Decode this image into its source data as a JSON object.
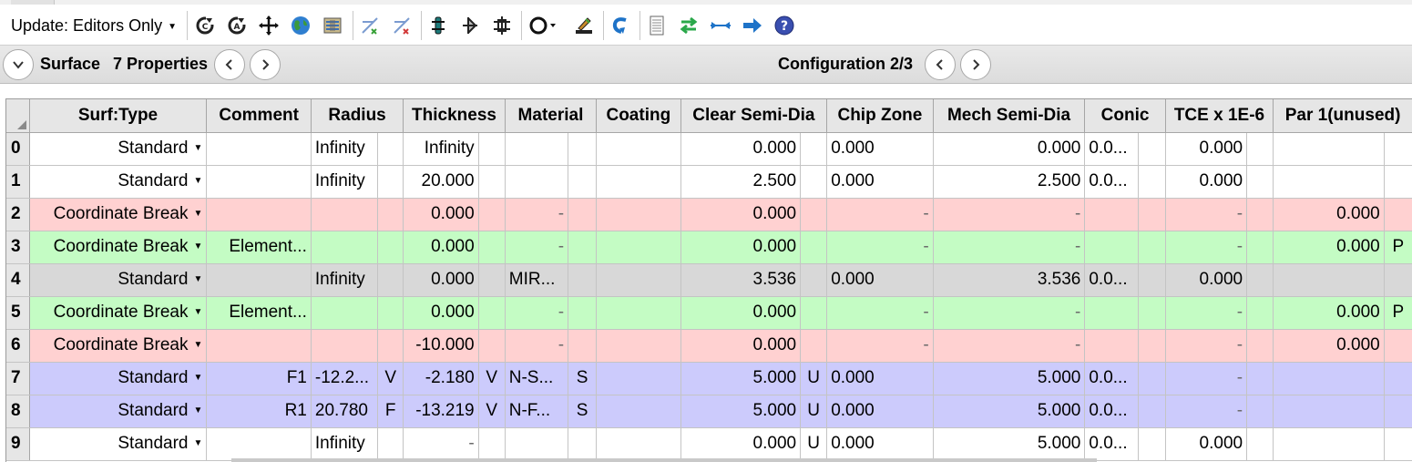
{
  "toolbar": {
    "update_label": "Update: Editors Only",
    "icons": [
      "refresh-icon",
      "refresh-all-icon",
      "crosshair-icon",
      "globe-icon",
      "wavefront-map-icon",
      "make-solves-variable-icon",
      "remove-variables-icon",
      "optimize-icon",
      "merit-function-icon",
      "tolerance-icon",
      "aperture-icon",
      "edit-icon",
      "undo-icon",
      "lens-data-icon",
      "swap-icon",
      "insert-icon",
      "forward-icon",
      "help-icon"
    ]
  },
  "surface_bar": {
    "surface_label": "Surface",
    "properties_label": "7 Properties",
    "config_label": "Configuration 2/3"
  },
  "grid": {
    "columns": [
      "Surf:Type",
      "Comment",
      "Radius",
      "Thickness",
      "Material",
      "Coating",
      "Clear Semi-Dia",
      "Chip Zone",
      "Mech Semi-Dia",
      "Conic",
      "TCE x 1E-6",
      "Par 1(unused)"
    ],
    "rows": [
      {
        "num": "0",
        "style": "white",
        "type": "Standard",
        "comment": "",
        "radius": "Infinity",
        "radius_solve": "",
        "thickness": "Infinity",
        "thickness_solve": "",
        "material": "",
        "material_solve": "",
        "coating": "",
        "clear": "0.000",
        "clear_solve": "",
        "chip": "0.000",
        "mech": "0.000",
        "conic": "0.0...",
        "tce": "0.000",
        "par1": "",
        "par1_solve": ""
      },
      {
        "num": "1",
        "style": "white",
        "type": "Standard",
        "comment": "",
        "radius": "Infinity",
        "radius_solve": "",
        "thickness": "20.000",
        "thickness_solve": "",
        "material": "",
        "material_solve": "",
        "coating": "",
        "clear": "2.500",
        "clear_solve": "",
        "chip": "0.000",
        "mech": "2.500",
        "conic": "0.0...",
        "tce": "0.000",
        "par1": "",
        "par1_solve": ""
      },
      {
        "num": "2",
        "style": "pink",
        "type": "Coordinate Break",
        "comment": "",
        "radius": "",
        "radius_solve": "",
        "thickness": "0.000",
        "thickness_solve": "",
        "material": "-",
        "material_solve": "",
        "coating": "",
        "clear": "0.000",
        "clear_solve": "",
        "chip": "-",
        "mech": "-",
        "conic": "",
        "tce": "-",
        "par1": "0.000",
        "par1_solve": ""
      },
      {
        "num": "3",
        "style": "green",
        "type": "Coordinate Break",
        "comment": "Element...",
        "radius": "",
        "radius_solve": "",
        "thickness": "0.000",
        "thickness_solve": "",
        "material": "-",
        "material_solve": "",
        "coating": "",
        "clear": "0.000",
        "clear_solve": "",
        "chip": "-",
        "mech": "-",
        "conic": "",
        "tce": "-",
        "par1": "0.000",
        "par1_solve": "P"
      },
      {
        "num": "4",
        "style": "gray",
        "type": "Standard",
        "comment": "",
        "radius": "Infinity",
        "radius_solve": "",
        "thickness": "0.000",
        "thickness_solve": "",
        "material": "MIR...",
        "material_solve": "",
        "coating": "",
        "clear": "3.536",
        "clear_solve": "",
        "chip": "0.000",
        "mech": "3.536",
        "conic": "0.0...",
        "tce": "0.000",
        "par1": "",
        "par1_solve": ""
      },
      {
        "num": "5",
        "style": "green",
        "type": "Coordinate Break",
        "comment": "Element...",
        "radius": "",
        "radius_solve": "",
        "thickness": "0.000",
        "thickness_solve": "",
        "material": "-",
        "material_solve": "",
        "coating": "",
        "clear": "0.000",
        "clear_solve": "",
        "chip": "-",
        "mech": "-",
        "conic": "",
        "tce": "-",
        "par1": "0.000",
        "par1_solve": "P"
      },
      {
        "num": "6",
        "style": "pink",
        "type": "Coordinate Break",
        "comment": "",
        "radius": "",
        "radius_solve": "",
        "thickness": "-10.000",
        "thickness_solve": "",
        "material": "-",
        "material_solve": "",
        "coating": "",
        "clear": "0.000",
        "clear_solve": "",
        "chip": "-",
        "mech": "-",
        "conic": "",
        "tce": "-",
        "par1": "0.000",
        "par1_solve": ""
      },
      {
        "num": "7",
        "style": "blue",
        "type": "Standard",
        "comment": "F1",
        "radius": "-12.2...",
        "radius_solve": "V",
        "thickness": "-2.180",
        "thickness_solve": "V",
        "material": "N-S...",
        "material_solve": "S",
        "coating": "",
        "clear": "5.000",
        "clear_solve": "U",
        "chip": "0.000",
        "mech": "5.000",
        "conic": "0.0...",
        "tce": "-",
        "par1": "",
        "par1_solve": ""
      },
      {
        "num": "8",
        "style": "blue",
        "type": "Standard",
        "comment": "R1",
        "radius": "20.780",
        "radius_solve": "F",
        "thickness": "-13.219",
        "thickness_solve": "V",
        "material": "N-F...",
        "material_solve": "S",
        "coating": "",
        "clear": "5.000",
        "clear_solve": "U",
        "chip": "0.000",
        "mech": "5.000",
        "conic": "0.0...",
        "tce": "-",
        "par1": "",
        "par1_solve": ""
      },
      {
        "num": "9",
        "style": "white",
        "type": "Standard",
        "comment": "",
        "radius": "Infinity",
        "radius_solve": "",
        "thickness": "-",
        "thickness_solve": "",
        "material": "",
        "material_solve": "",
        "coating": "",
        "clear": "0.000",
        "clear_solve": "U",
        "chip": "0.000",
        "mech": "5.000",
        "conic": "0.0...",
        "tce": "0.000",
        "par1": "",
        "par1_solve": ""
      }
    ]
  }
}
